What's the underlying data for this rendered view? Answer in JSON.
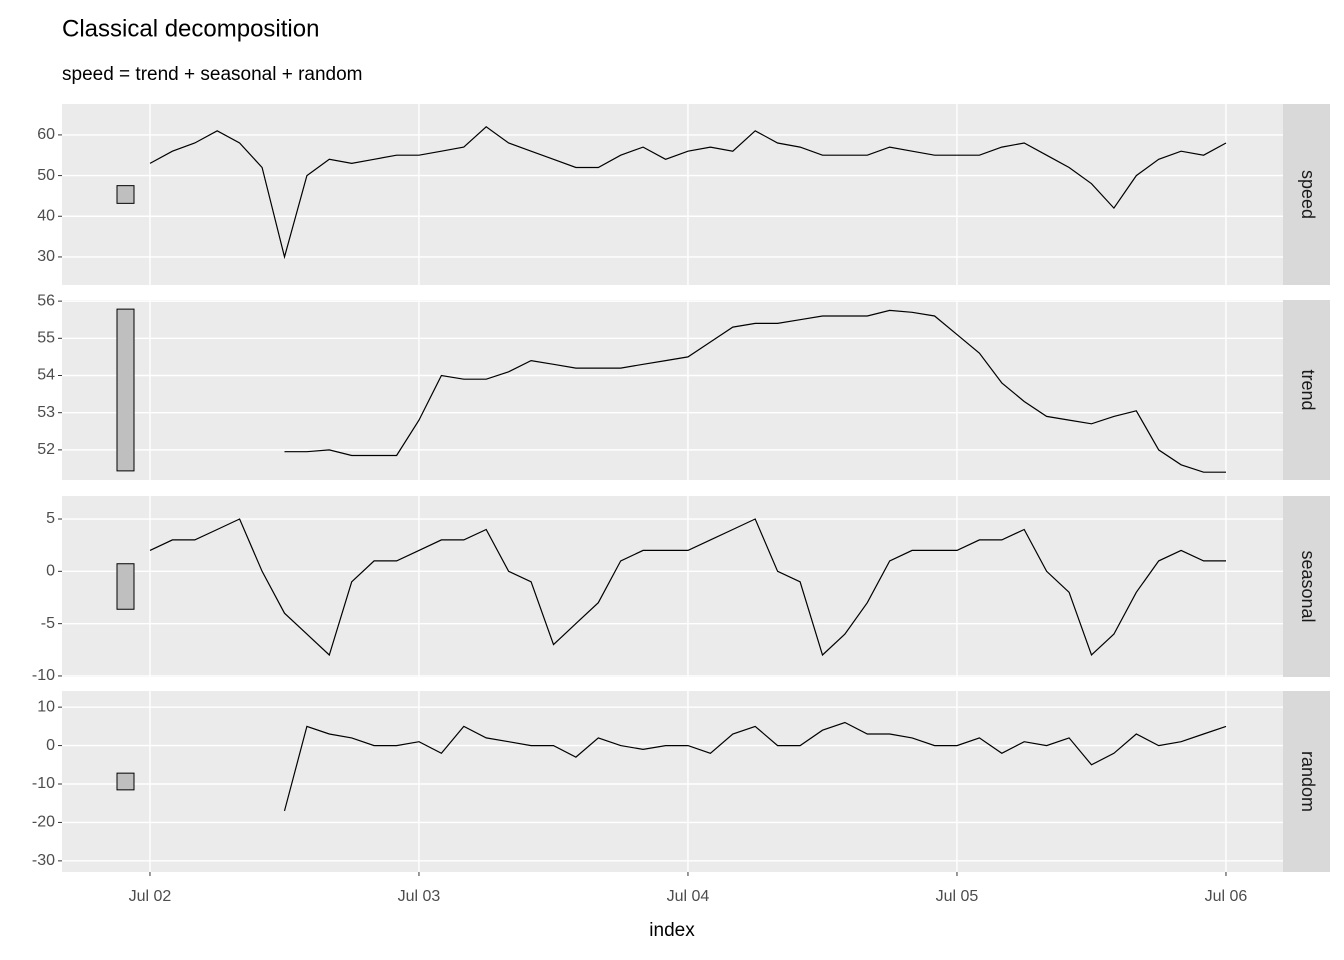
{
  "chart_data": {
    "type": "line",
    "title": "Classical decomposition",
    "subtitle": "speed = trend + seasonal + random",
    "x_label": "index",
    "x": [
      2,
      2.0833,
      2.1667,
      2.25,
      2.3333,
      2.4167,
      2.5,
      2.5833,
      2.6667,
      2.75,
      2.8333,
      2.9167,
      3,
      3.0833,
      3.1667,
      3.25,
      3.3333,
      3.4167,
      3.5,
      3.5833,
      3.6667,
      3.75,
      3.8333,
      3.9167,
      4,
      4.0833,
      4.1667,
      4.25,
      4.3333,
      4.4167,
      4.5,
      4.5833,
      4.6667,
      4.75,
      4.8333,
      4.9167,
      5,
      5.0833,
      5.1667,
      5.25,
      5.3333,
      5.4167,
      5.5,
      5.5833,
      5.6667,
      5.75,
      5.8333,
      5.9167,
      6
    ],
    "xlim": [
      1.673,
      6.212
    ],
    "xticks": [
      {
        "value": 2,
        "label": "Jul 02"
      },
      {
        "value": 3,
        "label": "Jul 03"
      },
      {
        "value": 4,
        "label": "Jul 04"
      },
      {
        "value": 5,
        "label": "Jul 05"
      },
      {
        "value": 6,
        "label": "Jul 06"
      }
    ],
    "grid": true,
    "series": [
      {
        "name": "speed",
        "color": "#000000",
        "ylim": [
          23.1,
          67.6
        ],
        "yticks": [
          30,
          40,
          50,
          60
        ],
        "values": [
          53,
          56,
          58,
          61,
          58,
          52,
          30,
          50,
          54,
          53,
          54,
          55,
          55,
          56,
          57,
          62,
          58,
          56,
          54,
          52,
          52,
          55,
          57,
          54,
          56,
          57,
          56,
          61,
          58,
          57,
          55,
          55,
          55,
          57,
          56,
          55,
          55,
          55,
          57,
          58,
          55,
          52,
          48,
          42,
          50,
          54,
          56,
          55,
          58
        ]
      },
      {
        "name": "trend",
        "color": "#000000",
        "ylim": [
          51.19,
          56.03
        ],
        "yticks": [
          52,
          53,
          54,
          55,
          56
        ],
        "values": [
          null,
          null,
          null,
          null,
          null,
          null,
          51.95,
          51.95,
          52.0,
          51.85,
          51.85,
          51.85,
          52.8,
          54.0,
          53.9,
          53.9,
          54.1,
          54.4,
          54.3,
          54.2,
          54.2,
          54.2,
          54.3,
          54.4,
          54.5,
          54.9,
          55.3,
          55.4,
          55.4,
          55.5,
          55.6,
          55.6,
          55.6,
          55.75,
          55.7,
          55.6,
          55.1,
          54.6,
          53.8,
          53.3,
          52.9,
          52.8,
          52.7,
          52.9,
          53.05,
          52.0,
          51.6,
          51.4,
          51.4
        ]
      },
      {
        "name": "seasonal",
        "color": "#000000",
        "ylim": [
          -10.1,
          7.2
        ],
        "yticks": [
          -10,
          -5,
          0,
          5
        ],
        "values": [
          2,
          3,
          3,
          4,
          5,
          0,
          -4,
          -6,
          -8,
          -1,
          1,
          1,
          2,
          3,
          3,
          4,
          0,
          -1,
          -7,
          -5,
          -3,
          1,
          2,
          2,
          2,
          3,
          4,
          5,
          0,
          -1,
          -8,
          -6,
          -3,
          1,
          2,
          2,
          2,
          3,
          3,
          4,
          0,
          -2,
          -8,
          -6,
          -2,
          1,
          2,
          1,
          1
        ]
      },
      {
        "name": "random",
        "color": "#000000",
        "ylim": [
          -32.9,
          14.2
        ],
        "yticks": [
          -30,
          -20,
          -10,
          0,
          10
        ],
        "values": [
          null,
          null,
          null,
          null,
          null,
          null,
          -17,
          5,
          3,
          2,
          0,
          0,
          1,
          -2,
          5,
          2,
          1,
          0,
          0,
          -3,
          2,
          0,
          -1,
          0,
          0,
          -2,
          3,
          5,
          0,
          0,
          4,
          6,
          3,
          3,
          2,
          0,
          0,
          2,
          -2,
          1,
          0,
          2,
          -5,
          -2,
          3,
          0,
          1,
          3,
          5
        ]
      }
    ]
  }
}
